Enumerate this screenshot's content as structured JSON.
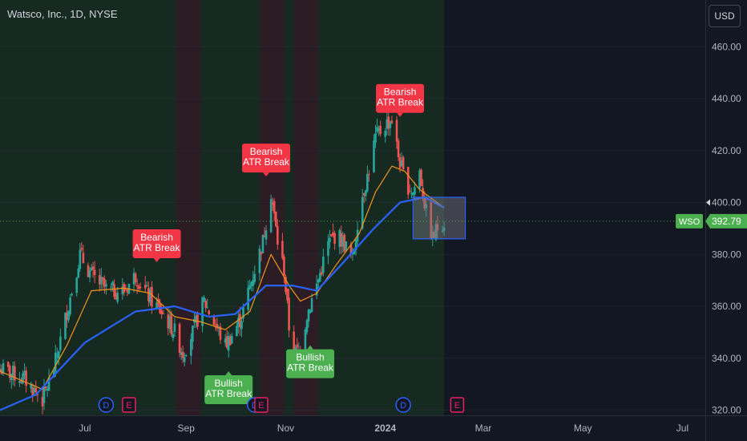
{
  "header": {
    "title": "Watsco, Inc., 1D, NYSE",
    "currency_button": "USD"
  },
  "price_tag": {
    "symbol": "WSO",
    "price": "392.79"
  },
  "colors": {
    "background": "#131722",
    "history_band": "#172a22",
    "bear_band": "#2c1c24",
    "up": "#26a69a",
    "down": "#ef5350",
    "ema_fast": "#f7931a",
    "ema_slow": "#2962ff",
    "bear_label": "#f23645",
    "bull_label": "#4caf50",
    "event_dividend": "#2962ff",
    "event_earnings": "#e91e63"
  },
  "chart_data": {
    "type": "candlestick",
    "title": "Watsco, Inc., 1D, NYSE",
    "x_range": [
      "2023-05-10",
      "2024-07-15"
    ],
    "ylim": [
      318,
      478
    ],
    "y_ticks": [
      320,
      340,
      360,
      380,
      400,
      420,
      440,
      460
    ],
    "y_tick_labels": [
      "320.00",
      "340.00",
      "360.00",
      "380.00",
      "400.00",
      "420.00",
      "440.00",
      "460.00"
    ],
    "x_ticks": [
      {
        "date": "2023-07-01",
        "label": "Jul",
        "bold": false
      },
      {
        "date": "2023-09-01",
        "label": "Sep",
        "bold": false
      },
      {
        "date": "2023-11-01",
        "label": "Nov",
        "bold": false
      },
      {
        "date": "2024-01-01",
        "label": "2024",
        "bold": true
      },
      {
        "date": "2024-03-01",
        "label": "Mar",
        "bold": false
      },
      {
        "date": "2024-05-01",
        "label": "May",
        "bold": false
      },
      {
        "date": "2024-07-01",
        "label": "Jul",
        "bold": false
      }
    ],
    "last_price": 392.79,
    "last_price_marker": 400,
    "history_end": "2024-02-06",
    "price_path": [
      [
        "2023-05-10",
        336
      ],
      [
        "2023-05-25",
        332
      ],
      [
        "2023-06-05",
        324
      ],
      [
        "2023-06-12",
        336
      ],
      [
        "2023-06-20",
        358
      ],
      [
        "2023-06-28",
        380
      ],
      [
        "2023-07-05",
        372
      ],
      [
        "2023-07-15",
        366
      ],
      [
        "2023-07-25",
        366
      ],
      [
        "2023-08-01",
        372
      ],
      [
        "2023-08-10",
        363
      ],
      [
        "2023-08-18",
        357
      ],
      [
        "2023-08-25",
        350
      ],
      [
        "2023-08-30",
        342
      ],
      [
        "2023-09-05",
        350
      ],
      [
        "2023-09-12",
        362
      ],
      [
        "2023-09-18",
        354
      ],
      [
        "2023-09-25",
        345
      ],
      [
        "2023-09-30",
        350
      ],
      [
        "2023-10-05",
        356
      ],
      [
        "2023-10-12",
        372
      ],
      [
        "2023-10-18",
        385
      ],
      [
        "2023-10-23",
        404
      ],
      [
        "2023-10-27",
        385
      ],
      [
        "2023-10-31",
        374
      ],
      [
        "2023-11-03",
        352
      ],
      [
        "2023-11-07",
        342
      ],
      [
        "2023-11-10",
        343
      ],
      [
        "2023-11-14",
        357
      ],
      [
        "2023-11-20",
        368
      ],
      [
        "2023-11-27",
        384
      ],
      [
        "2023-12-02",
        388
      ],
      [
        "2023-12-07",
        384
      ],
      [
        "2023-12-12",
        378
      ],
      [
        "2023-12-16",
        398
      ],
      [
        "2023-12-21",
        410
      ],
      [
        "2023-12-26",
        425
      ],
      [
        "2024-01-01",
        430
      ],
      [
        "2024-01-05",
        432
      ],
      [
        "2024-01-09",
        418
      ],
      [
        "2024-01-13",
        408
      ],
      [
        "2024-01-18",
        404
      ],
      [
        "2024-01-22",
        412
      ],
      [
        "2024-01-26",
        396
      ],
      [
        "2024-01-30",
        386
      ],
      [
        "2024-02-03",
        392
      ],
      [
        "2024-02-06",
        392.79
      ]
    ],
    "ema_fast": [
      [
        "2023-05-10",
        335
      ],
      [
        "2023-06-05",
        328
      ],
      [
        "2023-06-20",
        345
      ],
      [
        "2023-07-05",
        366
      ],
      [
        "2023-07-25",
        367
      ],
      [
        "2023-08-10",
        365
      ],
      [
        "2023-08-25",
        356
      ],
      [
        "2023-09-10",
        354
      ],
      [
        "2023-09-25",
        351
      ],
      [
        "2023-10-10",
        358
      ],
      [
        "2023-10-23",
        380
      ],
      [
        "2023-11-03",
        368
      ],
      [
        "2023-11-10",
        362
      ],
      [
        "2023-11-20",
        365
      ],
      [
        "2023-12-02",
        376
      ],
      [
        "2023-12-16",
        388
      ],
      [
        "2023-12-26",
        404
      ],
      [
        "2024-01-05",
        414
      ],
      [
        "2024-01-13",
        412
      ],
      [
        "2024-01-22",
        405
      ],
      [
        "2024-02-06",
        398
      ]
    ],
    "ema_slow": [
      [
        "2023-05-10",
        320
      ],
      [
        "2023-06-01",
        326
      ],
      [
        "2023-07-01",
        346
      ],
      [
        "2023-08-01",
        358
      ],
      [
        "2023-08-25",
        360
      ],
      [
        "2023-09-15",
        356
      ],
      [
        "2023-10-01",
        357
      ],
      [
        "2023-10-20",
        368
      ],
      [
        "2023-11-05",
        368
      ],
      [
        "2023-11-20",
        366
      ],
      [
        "2023-12-05",
        376
      ],
      [
        "2023-12-25",
        390
      ],
      [
        "2024-01-10",
        400
      ],
      [
        "2024-01-25",
        402
      ],
      [
        "2024-02-06",
        398
      ]
    ],
    "bear_zones": [
      [
        "2023-08-26",
        "2023-09-10"
      ],
      [
        "2023-10-16",
        "2023-10-31"
      ],
      [
        "2023-11-06",
        "2023-11-21"
      ]
    ],
    "signals": [
      {
        "type": "bearish",
        "text": [
          "Bearish",
          "ATR Break"
        ],
        "date": "2023-08-14",
        "price": 377
      },
      {
        "type": "bearish",
        "text": [
          "Bearish",
          "ATR Break"
        ],
        "date": "2023-10-20",
        "price": 410
      },
      {
        "type": "bearish",
        "text": [
          "Bearish",
          "ATR Break"
        ],
        "date": "2024-01-10",
        "price": 433
      },
      {
        "type": "bullish",
        "text": [
          "Bullish",
          "ATR Break"
        ],
        "date": "2023-09-27",
        "price": 335
      },
      {
        "type": "bullish",
        "text": [
          "Bullish",
          "ATR Break"
        ],
        "date": "2023-11-16",
        "price": 345
      }
    ],
    "events": [
      {
        "kind": "dividend",
        "letter": "D",
        "date": "2023-07-14"
      },
      {
        "kind": "earnings",
        "letter": "E",
        "date": "2023-07-28"
      },
      {
        "kind": "dividend",
        "letter": "D",
        "date": "2023-10-13"
      },
      {
        "kind": "earnings",
        "letter": "E",
        "date": "2023-10-17"
      },
      {
        "kind": "dividend",
        "letter": "D",
        "date": "2024-01-12"
      },
      {
        "kind": "earnings",
        "letter": "E",
        "date": "2024-02-14"
      }
    ],
    "box": {
      "start": "2024-01-18",
      "end": "2024-02-19",
      "top": 402,
      "bottom": 386
    }
  }
}
